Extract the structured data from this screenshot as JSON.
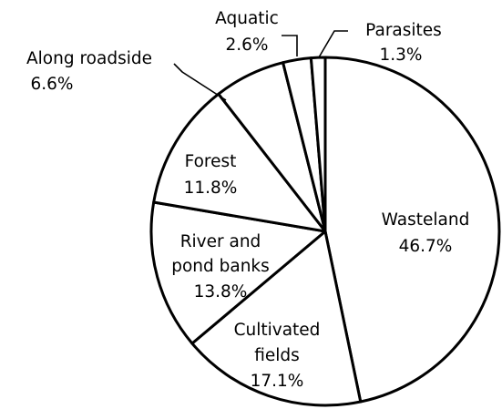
{
  "chart_data": {
    "type": "pie",
    "title": "",
    "start_angle_deg": 0,
    "direction": "clockwise",
    "slices": [
      {
        "label": "Wasteland",
        "value": 46.7,
        "value_label": "46.7%"
      },
      {
        "label": "Cultivated fields",
        "value": 17.1,
        "value_label": "17.1%"
      },
      {
        "label": "River and pond banks",
        "value": 13.8,
        "value_label": "13.8%"
      },
      {
        "label": "Forest",
        "value": 11.8,
        "value_label": "11.8%"
      },
      {
        "label": "Along roadside",
        "value": 6.6,
        "value_label": "6.6%"
      },
      {
        "label": "Aquatic",
        "value": 2.6,
        "value_label": "2.6%"
      },
      {
        "label": "Parasites",
        "value": 1.3,
        "value_label": "1.3%"
      }
    ],
    "colors": {
      "fill": "#ffffff",
      "stroke": "#000000",
      "text": "#000000"
    }
  }
}
